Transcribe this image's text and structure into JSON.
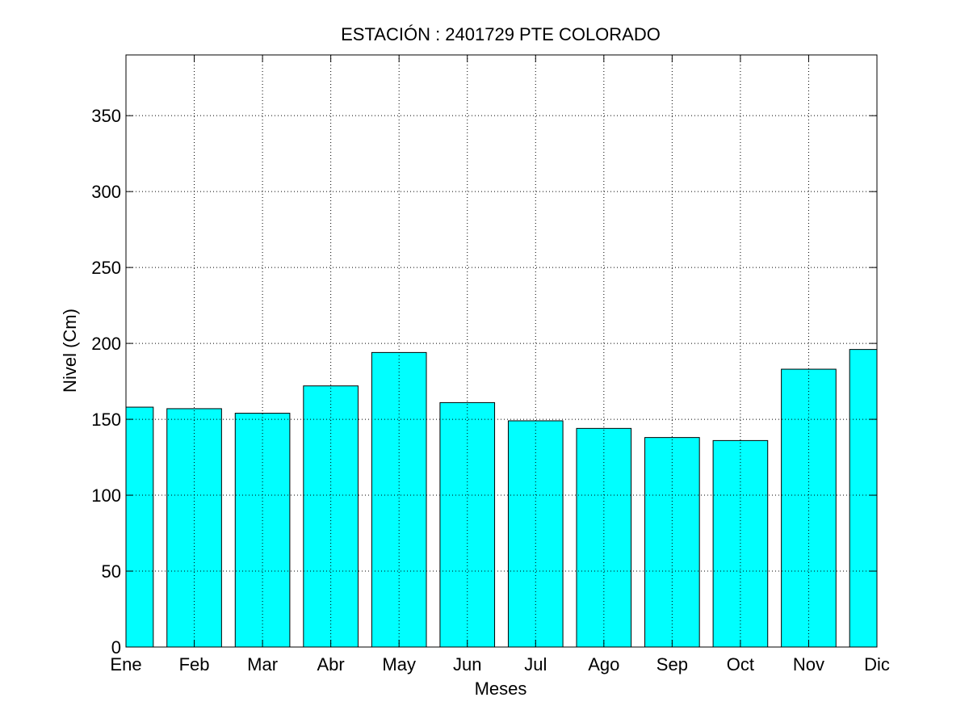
{
  "chart_data": {
    "type": "bar",
    "title": "ESTACIÓN :  2401729  PTE COLORADO",
    "xlabel": "Meses",
    "ylabel": "Nivel (Cm)",
    "categories": [
      "Ene",
      "Feb",
      "Mar",
      "Abr",
      "May",
      "Jun",
      "Jul",
      "Ago",
      "Sep",
      "Oct",
      "Nov",
      "Dic"
    ],
    "values": [
      158,
      157,
      154,
      172,
      194,
      161,
      149,
      144,
      138,
      136,
      183,
      196
    ],
    "ylim": [
      0,
      390
    ],
    "yticks": [
      0,
      50,
      100,
      150,
      200,
      250,
      300,
      350
    ],
    "grid": true,
    "bar_color": "#00ffff"
  }
}
